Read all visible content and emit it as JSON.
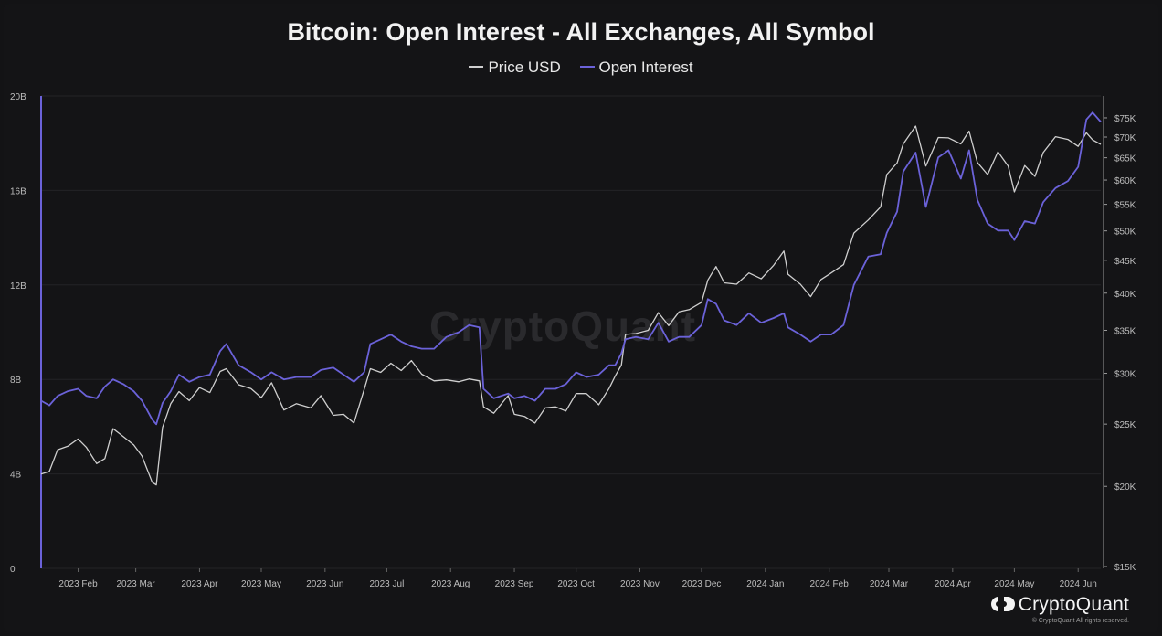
{
  "chart_data": {
    "type": "line",
    "title": "Bitcoin: Open Interest - All Exchanges, All Symbol",
    "legend": {
      "placement": "top-center",
      "entries": [
        "Price USD",
        "Open Interest"
      ]
    },
    "colors": {
      "price": "#cfcfcf",
      "open_interest": "#6b62d9",
      "grid": "#232326",
      "background": "#141416",
      "axis_text": "#bdbdbd"
    },
    "grid": true,
    "x_axis": {
      "range": [
        "2023-01-14",
        "2024-06-12"
      ],
      "ticks": [
        {
          "label": "2023 Feb",
          "date": "2023-02-01"
        },
        {
          "label": "2023 Mar",
          "date": "2023-03-01"
        },
        {
          "label": "2023 Apr",
          "date": "2023-04-01"
        },
        {
          "label": "2023 May",
          "date": "2023-05-01"
        },
        {
          "label": "2023 Jun",
          "date": "2023-06-01"
        },
        {
          "label": "2023 Jul",
          "date": "2023-07-01"
        },
        {
          "label": "2023 Aug",
          "date": "2023-08-01"
        },
        {
          "label": "2023 Sep",
          "date": "2023-09-01"
        },
        {
          "label": "2023 Oct",
          "date": "2023-10-01"
        },
        {
          "label": "2023 Nov",
          "date": "2023-11-01"
        },
        {
          "label": "2023 Dec",
          "date": "2023-12-01"
        },
        {
          "label": "2024 Jan",
          "date": "2024-01-01"
        },
        {
          "label": "2024 Feb",
          "date": "2024-02-01"
        },
        {
          "label": "2024 Mar",
          "date": "2024-03-01"
        },
        {
          "label": "2024 Apr",
          "date": "2024-04-01"
        },
        {
          "label": "2024 May",
          "date": "2024-05-01"
        },
        {
          "label": "2024 Jun",
          "date": "2024-06-01"
        }
      ]
    },
    "y_left": {
      "name": "Open Interest",
      "range": [
        0,
        20000000000
      ],
      "ticks": [
        {
          "label": "0",
          "value": 0
        },
        {
          "label": "4B",
          "value": 4000000000
        },
        {
          "label": "8B",
          "value": 8000000000
        },
        {
          "label": "12B",
          "value": 12000000000
        },
        {
          "label": "16B",
          "value": 16000000000
        },
        {
          "label": "20B",
          "value": 20000000000
        }
      ]
    },
    "y_right": {
      "name": "Price USD",
      "scale": "log",
      "range": [
        15000,
        78000
      ],
      "ticks": [
        {
          "label": "$15K",
          "value": 15000
        },
        {
          "label": "$20K",
          "value": 20000
        },
        {
          "label": "$25K",
          "value": 25000
        },
        {
          "label": "$30K",
          "value": 30000
        },
        {
          "label": "$35K",
          "value": 35000
        },
        {
          "label": "$40K",
          "value": 40000
        },
        {
          "label": "$45K",
          "value": 45000
        },
        {
          "label": "$50K",
          "value": 50000
        },
        {
          "label": "$55K",
          "value": 55000
        },
        {
          "label": "$60K",
          "value": 60000
        },
        {
          "label": "$65K",
          "value": 65000
        },
        {
          "label": "$70K",
          "value": 70000
        },
        {
          "label": "$75K",
          "value": 75000
        }
      ]
    },
    "series": [
      {
        "name": "Price USD",
        "axis": "right",
        "points": [
          [
            "2023-01-14",
            20900
          ],
          [
            "2023-01-18",
            21100
          ],
          [
            "2023-01-22",
            22800
          ],
          [
            "2023-01-27",
            23100
          ],
          [
            "2023-02-01",
            23700
          ],
          [
            "2023-02-05",
            23000
          ],
          [
            "2023-02-10",
            21700
          ],
          [
            "2023-02-14",
            22100
          ],
          [
            "2023-02-18",
            24600
          ],
          [
            "2023-02-23",
            23900
          ],
          [
            "2023-02-28",
            23200
          ],
          [
            "2023-03-04",
            22300
          ],
          [
            "2023-03-09",
            20300
          ],
          [
            "2023-03-11",
            20100
          ],
          [
            "2023-03-14",
            24700
          ],
          [
            "2023-03-18",
            26900
          ],
          [
            "2023-03-22",
            28100
          ],
          [
            "2023-03-27",
            27200
          ],
          [
            "2023-04-01",
            28500
          ],
          [
            "2023-04-06",
            28000
          ],
          [
            "2023-04-11",
            30200
          ],
          [
            "2023-04-14",
            30500
          ],
          [
            "2023-04-20",
            28800
          ],
          [
            "2023-04-26",
            28400
          ],
          [
            "2023-05-01",
            27500
          ],
          [
            "2023-05-06",
            29000
          ],
          [
            "2023-05-12",
            26300
          ],
          [
            "2023-05-18",
            26900
          ],
          [
            "2023-05-25",
            26500
          ],
          [
            "2023-05-30",
            27700
          ],
          [
            "2023-06-05",
            25800
          ],
          [
            "2023-06-10",
            25900
          ],
          [
            "2023-06-15",
            25100
          ],
          [
            "2023-06-20",
            28300
          ],
          [
            "2023-06-23",
            30500
          ],
          [
            "2023-06-28",
            30100
          ],
          [
            "2023-07-03",
            31100
          ],
          [
            "2023-07-08",
            30300
          ],
          [
            "2023-07-13",
            31400
          ],
          [
            "2023-07-18",
            29900
          ],
          [
            "2023-07-24",
            29200
          ],
          [
            "2023-07-30",
            29300
          ],
          [
            "2023-08-05",
            29100
          ],
          [
            "2023-08-10",
            29400
          ],
          [
            "2023-08-15",
            29200
          ],
          [
            "2023-08-17",
            26600
          ],
          [
            "2023-08-22",
            26000
          ],
          [
            "2023-08-29",
            27700
          ],
          [
            "2023-09-01",
            25900
          ],
          [
            "2023-09-06",
            25700
          ],
          [
            "2023-09-11",
            25100
          ],
          [
            "2023-09-16",
            26500
          ],
          [
            "2023-09-21",
            26600
          ],
          [
            "2023-09-26",
            26200
          ],
          [
            "2023-10-01",
            27900
          ],
          [
            "2023-10-06",
            27900
          ],
          [
            "2023-10-12",
            26800
          ],
          [
            "2023-10-17",
            28400
          ],
          [
            "2023-10-20",
            29700
          ],
          [
            "2023-10-23",
            30900
          ],
          [
            "2023-10-25",
            34500
          ],
          [
            "2023-10-30",
            34600
          ],
          [
            "2023-11-05",
            35000
          ],
          [
            "2023-11-10",
            37300
          ],
          [
            "2023-11-15",
            35600
          ],
          [
            "2023-11-20",
            37400
          ],
          [
            "2023-11-25",
            37700
          ],
          [
            "2023-12-01",
            38700
          ],
          [
            "2023-12-04",
            41900
          ],
          [
            "2023-12-08",
            44000
          ],
          [
            "2023-12-12",
            41500
          ],
          [
            "2023-12-18",
            41300
          ],
          [
            "2023-12-24",
            43000
          ],
          [
            "2023-12-30",
            42100
          ],
          [
            "2024-01-05",
            44200
          ],
          [
            "2024-01-10",
            46500
          ],
          [
            "2024-01-12",
            42800
          ],
          [
            "2024-01-18",
            41300
          ],
          [
            "2024-01-23",
            39500
          ],
          [
            "2024-01-28",
            42000
          ],
          [
            "2024-02-02",
            43000
          ],
          [
            "2024-02-08",
            44300
          ],
          [
            "2024-02-13",
            49600
          ],
          [
            "2024-02-20",
            52000
          ],
          [
            "2024-02-26",
            54500
          ],
          [
            "2024-02-29",
            61200
          ],
          [
            "2024-03-05",
            63800
          ],
          [
            "2024-03-08",
            68300
          ],
          [
            "2024-03-14",
            72800
          ],
          [
            "2024-03-19",
            63100
          ],
          [
            "2024-03-25",
            69900
          ],
          [
            "2024-03-30",
            69800
          ],
          [
            "2024-04-05",
            68300
          ],
          [
            "2024-04-09",
            71500
          ],
          [
            "2024-04-13",
            63900
          ],
          [
            "2024-04-18",
            61200
          ],
          [
            "2024-04-23",
            66400
          ],
          [
            "2024-04-28",
            63100
          ],
          [
            "2024-05-01",
            57500
          ],
          [
            "2024-05-06",
            63200
          ],
          [
            "2024-05-11",
            60800
          ],
          [
            "2024-05-15",
            66200
          ],
          [
            "2024-05-21",
            70100
          ],
          [
            "2024-05-27",
            69400
          ],
          [
            "2024-06-01",
            67700
          ],
          [
            "2024-06-05",
            71100
          ],
          [
            "2024-06-08",
            69300
          ],
          [
            "2024-06-12",
            68200
          ]
        ]
      },
      {
        "name": "Open Interest",
        "axis": "left",
        "points": [
          [
            "2023-01-14",
            7100000000
          ],
          [
            "2023-01-18",
            6900000000
          ],
          [
            "2023-01-22",
            7300000000
          ],
          [
            "2023-01-27",
            7500000000
          ],
          [
            "2023-02-01",
            7600000000
          ],
          [
            "2023-02-05",
            7300000000
          ],
          [
            "2023-02-10",
            7200000000
          ],
          [
            "2023-02-14",
            7700000000
          ],
          [
            "2023-02-18",
            8000000000
          ],
          [
            "2023-02-23",
            7800000000
          ],
          [
            "2023-02-28",
            7500000000
          ],
          [
            "2023-03-04",
            7100000000
          ],
          [
            "2023-03-09",
            6300000000
          ],
          [
            "2023-03-11",
            6100000000
          ],
          [
            "2023-03-14",
            7000000000
          ],
          [
            "2023-03-18",
            7500000000
          ],
          [
            "2023-03-22",
            8200000000
          ],
          [
            "2023-03-27",
            7900000000
          ],
          [
            "2023-04-01",
            8100000000
          ],
          [
            "2023-04-06",
            8200000000
          ],
          [
            "2023-04-11",
            9200000000
          ],
          [
            "2023-04-14",
            9500000000
          ],
          [
            "2023-04-20",
            8600000000
          ],
          [
            "2023-04-26",
            8300000000
          ],
          [
            "2023-05-01",
            8000000000
          ],
          [
            "2023-05-06",
            8300000000
          ],
          [
            "2023-05-12",
            8000000000
          ],
          [
            "2023-05-18",
            8100000000
          ],
          [
            "2023-05-25",
            8100000000
          ],
          [
            "2023-05-30",
            8400000000
          ],
          [
            "2023-06-05",
            8500000000
          ],
          [
            "2023-06-10",
            8200000000
          ],
          [
            "2023-06-15",
            7900000000
          ],
          [
            "2023-06-20",
            8300000000
          ],
          [
            "2023-06-23",
            9500000000
          ],
          [
            "2023-06-28",
            9700000000
          ],
          [
            "2023-07-03",
            9900000000
          ],
          [
            "2023-07-08",
            9600000000
          ],
          [
            "2023-07-13",
            9400000000
          ],
          [
            "2023-07-18",
            9300000000
          ],
          [
            "2023-07-24",
            9300000000
          ],
          [
            "2023-07-30",
            9800000000
          ],
          [
            "2023-08-05",
            10000000000
          ],
          [
            "2023-08-10",
            10300000000
          ],
          [
            "2023-08-15",
            10200000000
          ],
          [
            "2023-08-17",
            7600000000
          ],
          [
            "2023-08-22",
            7200000000
          ],
          [
            "2023-08-29",
            7400000000
          ],
          [
            "2023-09-01",
            7200000000
          ],
          [
            "2023-09-06",
            7300000000
          ],
          [
            "2023-09-11",
            7100000000
          ],
          [
            "2023-09-16",
            7600000000
          ],
          [
            "2023-09-21",
            7600000000
          ],
          [
            "2023-09-26",
            7800000000
          ],
          [
            "2023-10-01",
            8300000000
          ],
          [
            "2023-10-06",
            8100000000
          ],
          [
            "2023-10-12",
            8200000000
          ],
          [
            "2023-10-17",
            8600000000
          ],
          [
            "2023-10-20",
            8600000000
          ],
          [
            "2023-10-23",
            9100000000
          ],
          [
            "2023-10-25",
            9700000000
          ],
          [
            "2023-10-30",
            9800000000
          ],
          [
            "2023-11-05",
            9700000000
          ],
          [
            "2023-11-10",
            10400000000
          ],
          [
            "2023-11-15",
            9600000000
          ],
          [
            "2023-11-20",
            9800000000
          ],
          [
            "2023-11-25",
            9800000000
          ],
          [
            "2023-12-01",
            10300000000
          ],
          [
            "2023-12-04",
            11400000000
          ],
          [
            "2023-12-08",
            11200000000
          ],
          [
            "2023-12-12",
            10500000000
          ],
          [
            "2023-12-18",
            10300000000
          ],
          [
            "2023-12-24",
            10800000000
          ],
          [
            "2023-12-30",
            10400000000
          ],
          [
            "2024-01-05",
            10600000000
          ],
          [
            "2024-01-10",
            10800000000
          ],
          [
            "2024-01-12",
            10200000000
          ],
          [
            "2024-01-18",
            9900000000
          ],
          [
            "2024-01-23",
            9600000000
          ],
          [
            "2024-01-28",
            9900000000
          ],
          [
            "2024-02-02",
            9900000000
          ],
          [
            "2024-02-08",
            10300000000
          ],
          [
            "2024-02-13",
            12000000000
          ],
          [
            "2024-02-20",
            13200000000
          ],
          [
            "2024-02-26",
            13300000000
          ],
          [
            "2024-02-29",
            14200000000
          ],
          [
            "2024-03-05",
            15100000000
          ],
          [
            "2024-03-08",
            16800000000
          ],
          [
            "2024-03-14",
            17600000000
          ],
          [
            "2024-03-19",
            15300000000
          ],
          [
            "2024-03-25",
            17400000000
          ],
          [
            "2024-03-30",
            17700000000
          ],
          [
            "2024-04-05",
            16500000000
          ],
          [
            "2024-04-09",
            17700000000
          ],
          [
            "2024-04-13",
            15600000000
          ],
          [
            "2024-04-18",
            14600000000
          ],
          [
            "2024-04-23",
            14300000000
          ],
          [
            "2024-04-28",
            14300000000
          ],
          [
            "2024-05-01",
            13900000000
          ],
          [
            "2024-05-06",
            14700000000
          ],
          [
            "2024-05-11",
            14600000000
          ],
          [
            "2024-05-15",
            15500000000
          ],
          [
            "2024-05-21",
            16100000000
          ],
          [
            "2024-05-27",
            16400000000
          ],
          [
            "2024-06-01",
            17000000000
          ],
          [
            "2024-06-05",
            19000000000
          ],
          [
            "2024-06-08",
            19300000000
          ],
          [
            "2024-06-12",
            18900000000
          ]
        ]
      }
    ]
  },
  "watermark": "CryptoQuant",
  "branding": {
    "logo_text": "CryptoQuant",
    "copyright": "© CryptoQuant All rights reserved."
  }
}
